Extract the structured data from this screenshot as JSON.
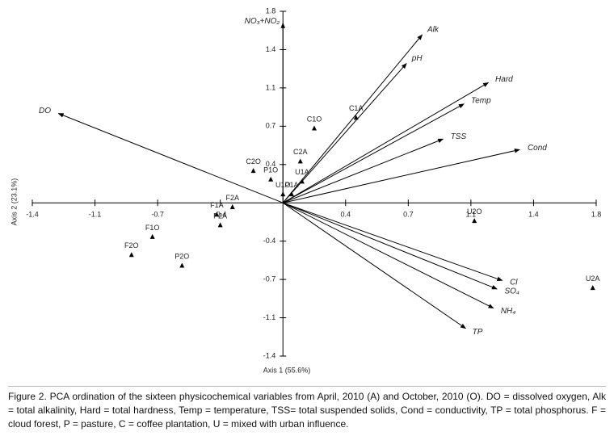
{
  "chart_data": {
    "type": "biplot",
    "x_label": "Axis 1 (55.6%)",
    "y_label": "Axis 2 (23.1%)",
    "xlim": [
      -1.44,
      1.8
    ],
    "ylim": [
      -1.44,
      1.8
    ],
    "xticks": [
      {
        "value": -1.44,
        "label": "-1.4"
      },
      {
        "value": -1.08,
        "label": "-1.1"
      },
      {
        "value": -0.72,
        "label": "-0.7"
      },
      {
        "value": -0.36,
        "label": "-0.4"
      },
      {
        "value": 0.36,
        "label": "0.4"
      },
      {
        "value": 0.72,
        "label": "0.7"
      },
      {
        "value": 1.08,
        "label": "1.1"
      },
      {
        "value": 1.44,
        "label": "1.4"
      },
      1.8
    ],
    "yticks": [
      {
        "value": -1.44,
        "label": "-1.4"
      },
      {
        "value": -1.08,
        "label": "-1.1"
      },
      {
        "value": -0.72,
        "label": "-0.7"
      },
      {
        "value": -0.36,
        "label": "-0.4"
      },
      {
        "value": 0.36,
        "label": "0.4"
      },
      {
        "value": 0.72,
        "label": "0.7"
      },
      {
        "value": 1.08,
        "label": "1.1"
      },
      {
        "value": 1.44,
        "label": "1.4"
      },
      1.8
    ],
    "vectors": {
      "labels": [
        "NO₃+NO₂",
        "Alk",
        "pH",
        "Hard",
        "Temp",
        "TSS",
        "Cond",
        "Cl",
        "SO₄",
        "NH₄",
        "TP",
        "DO"
      ],
      "x": [
        0,
        0.8,
        0.71,
        1.18,
        1.04,
        0.92,
        1.36,
        1.26,
        1.23,
        1.21,
        1.05,
        -1.29
      ],
      "y": [
        1.69,
        1.58,
        1.31,
        1.13,
        0.93,
        0.6,
        0.5,
        -0.73,
        -0.81,
        -0.99,
        -1.18,
        0.84
      ]
    },
    "points": {
      "labels": [
        "C1A",
        "C1O",
        "C2A",
        "C2O",
        "P1O",
        "U1A",
        "P1A",
        "U1O",
        "F2A",
        "F1A",
        "P2A",
        "F1O",
        "F2O",
        "P2O",
        "U2O",
        "U2A"
      ],
      "x": [
        0.42,
        0.18,
        0.1,
        -0.17,
        -0.07,
        0.11,
        0.05,
        0,
        -0.29,
        -0.38,
        -0.36,
        -0.75,
        -0.87,
        -0.58,
        1.1,
        1.78
      ],
      "y": [
        0.8,
        0.7,
        0.39,
        0.3,
        0.22,
        0.2,
        0.08,
        0.08,
        -0.04,
        -0.11,
        -0.21,
        -0.32,
        -0.49,
        -0.59,
        -0.17,
        -0.8
      ]
    },
    "color": "#000000"
  },
  "caption": "Figure 2. PCA ordination of the sixteen physicochemical variables from April, 2010 (A) and October, 2010 (O). DO = dissolved oxygen, Alk = total alkalinity, Hard = total hardness, Temp = temperature, TSS= total suspended solids, Cond = conductivity, TP = total phosphorus. F = cloud forest, P = pasture, C = coffee plantation, U = mixed with urban influence."
}
